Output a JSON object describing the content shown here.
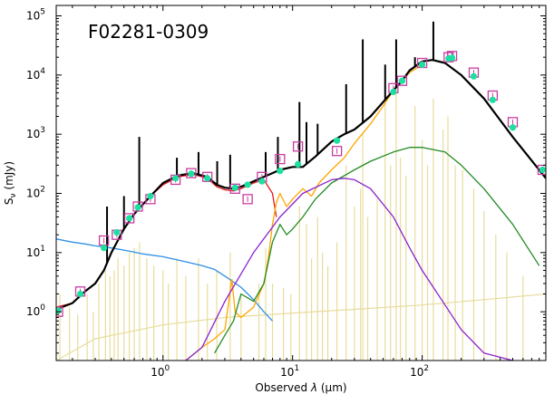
{
  "chart_data": {
    "type": "line",
    "title": "F02281-0309",
    "xlabel_prefix": "Observed ",
    "xlabel_lambda": "λ",
    "xlabel_suffix": " (μm)",
    "ylabel_main": "S",
    "ylabel_sub": "ν",
    "ylabel_unit": " (mJy)",
    "xscale": "log",
    "yscale": "log",
    "xlim": [
      0.15,
      900
    ],
    "ylim": [
      0.15,
      150000
    ],
    "x_ticks": [
      {
        "value": 1,
        "label": "10",
        "exp": "0"
      },
      {
        "value": 10,
        "label": "10",
        "exp": "1"
      },
      {
        "value": 100,
        "label": "10",
        "exp": "2"
      }
    ],
    "y_ticks": [
      {
        "value": 1,
        "label": "10",
        "exp": "0"
      },
      {
        "value": 10,
        "label": "10",
        "exp": "1"
      },
      {
        "value": 100,
        "label": "10",
        "exp": "2"
      },
      {
        "value": 1000,
        "label": "10",
        "exp": "3"
      },
      {
        "value": 10000,
        "label": "10",
        "exp": "4"
      },
      {
        "value": 100000,
        "label": "10",
        "exp": "5"
      }
    ],
    "series": [
      {
        "key": "stellar_unattenuated",
        "color": "#2f8fe6",
        "x": [
          0.15,
          0.2,
          0.25,
          0.3,
          0.4,
          0.5,
          0.7,
          1.0,
          1.5,
          2.0,
          2.5,
          3.0,
          4.0,
          5.0,
          6.0,
          7.0
        ],
        "y": [
          17,
          15,
          14,
          13,
          12,
          11,
          9.5,
          8.5,
          7,
          6,
          5.2,
          4.0,
          2.6,
          1.6,
          1.0,
          0.7
        ]
      },
      {
        "key": "stellar_attenuated",
        "color": "#e41a1c",
        "x": [
          0.15,
          0.2,
          0.25,
          0.3,
          0.35,
          0.4,
          0.5,
          0.6,
          0.8,
          1.0,
          1.3,
          1.7,
          2.2,
          2.6,
          3.0,
          3.5,
          4.0,
          5.0,
          6.0,
          7.0,
          7.5
        ],
        "y": [
          1.2,
          1.4,
          2.2,
          3.0,
          5.0,
          10,
          25,
          45,
          90,
          140,
          190,
          210,
          180,
          130,
          115,
          110,
          120,
          150,
          170,
          100,
          40
        ]
      },
      {
        "key": "agn_torus",
        "color": "#ffa500",
        "x": [
          1.5,
          2.0,
          2.5,
          3.0,
          3.4,
          3.6,
          4.0,
          5.0,
          6.0,
          6.5,
          7.0,
          7.5,
          8.0,
          9.0,
          10.0,
          12.0,
          14.0,
          16.0,
          20.0,
          25.0,
          30.0,
          40.0,
          50.0,
          60.0,
          70.0,
          80.0,
          100.0
        ],
        "y": [
          0.15,
          0.25,
          0.35,
          0.5,
          3.5,
          1.0,
          0.8,
          1.2,
          3.0,
          8,
          30,
          70,
          100,
          60,
          80,
          120,
          90,
          150,
          250,
          400,
          700,
          1500,
          3000,
          5500,
          8000,
          11000,
          15000
        ]
      },
      {
        "key": "cold_dust",
        "color": "#228b22",
        "x": [
          2.5,
          3.0,
          3.5,
          4.0,
          5.0,
          6.0,
          7.0,
          8.0,
          9.0,
          10.0,
          12.0,
          15.0,
          20.0,
          30.0,
          40.0,
          60.0,
          80.0,
          100.0,
          150.0,
          200.0,
          300.0,
          500.0,
          800.0
        ],
        "y": [
          0.2,
          0.4,
          0.7,
          2.0,
          1.5,
          3.0,
          15,
          30,
          20,
          25,
          40,
          80,
          150,
          250,
          350,
          500,
          600,
          600,
          500,
          300,
          120,
          30,
          6
        ]
      },
      {
        "key": "hot_dust",
        "color": "#8b22cc",
        "x": [
          1.5,
          2.0,
          3.0,
          5.0,
          8.0,
          12.0,
          20.0,
          25.0,
          30.0,
          40.0,
          60.0,
          80.0,
          100.0,
          150.0,
          200.0,
          300.0,
          500.0
        ],
        "y": [
          0.15,
          0.25,
          1.5,
          10,
          40,
          100,
          170,
          180,
          170,
          120,
          40,
          12,
          5,
          1.3,
          0.5,
          0.2,
          0.15
        ]
      },
      {
        "key": "total_model",
        "color": "#000000",
        "x": [
          0.15,
          0.2,
          0.25,
          0.3,
          0.35,
          0.4,
          0.5,
          0.6,
          0.8,
          1.0,
          1.3,
          1.7,
          2.2,
          2.6,
          3.0,
          3.5,
          4.0,
          5.0,
          6.0,
          7.0,
          8.0,
          10.0,
          12.0,
          15.0,
          20.0,
          25.0,
          30.0,
          40.0,
          50.0,
          60.0,
          70.0,
          80.0,
          100.0,
          120.0,
          150.0,
          200.0,
          300.0,
          500.0,
          900.0
        ],
        "y": [
          1.1,
          1.4,
          2.2,
          3.0,
          5.0,
          10,
          25,
          45,
          90,
          150,
          200,
          220,
          190,
          140,
          125,
          120,
          130,
          160,
          190,
          220,
          250,
          280,
          280,
          420,
          750,
          1000,
          1200,
          2000,
          3500,
          5500,
          8000,
          12000,
          17000,
          18000,
          16000,
          10000,
          4000,
          900,
          180
        ]
      }
    ],
    "emission_lines": [
      {
        "x": 0.37,
        "y": 60
      },
      {
        "x": 0.5,
        "y": 90
      },
      {
        "x": 0.656,
        "y": 900
      },
      {
        "x": 1.28,
        "y": 400
      },
      {
        "x": 1.88,
        "y": 500
      },
      {
        "x": 2.62,
        "y": 350
      },
      {
        "x": 3.3,
        "y": 450
      },
      {
        "x": 6.2,
        "y": 500
      },
      {
        "x": 7.7,
        "y": 900
      },
      {
        "x": 11.3,
        "y": 3500
      },
      {
        "x": 12.8,
        "y": 1600
      },
      {
        "x": 15.6,
        "y": 1500
      },
      {
        "x": 25.9,
        "y": 7000
      },
      {
        "x": 34.8,
        "y": 40000
      },
      {
        "x": 51.8,
        "y": 15000
      },
      {
        "x": 63.0,
        "y": 40000
      },
      {
        "x": 88.0,
        "y": 20000
      },
      {
        "x": 122.0,
        "y": 80000
      }
    ],
    "template_lines": [
      {
        "x": 0.16,
        "y": 2
      },
      {
        "x": 0.19,
        "y": 1.2
      },
      {
        "x": 0.22,
        "y": 0.9
      },
      {
        "x": 0.26,
        "y": 2
      },
      {
        "x": 0.29,
        "y": 1
      },
      {
        "x": 0.32,
        "y": 3
      },
      {
        "x": 0.36,
        "y": 5
      },
      {
        "x": 0.39,
        "y": 4
      },
      {
        "x": 0.42,
        "y": 5
      },
      {
        "x": 0.45,
        "y": 8
      },
      {
        "x": 0.5,
        "y": 6
      },
      {
        "x": 0.55,
        "y": 10
      },
      {
        "x": 0.6,
        "y": 12
      },
      {
        "x": 0.66,
        "y": 15
      },
      {
        "x": 0.75,
        "y": 8
      },
      {
        "x": 0.85,
        "y": 6
      },
      {
        "x": 1.0,
        "y": 5
      },
      {
        "x": 1.1,
        "y": 3
      },
      {
        "x": 1.28,
        "y": 8
      },
      {
        "x": 1.5,
        "y": 4
      },
      {
        "x": 1.88,
        "y": 8
      },
      {
        "x": 2.2,
        "y": 3
      },
      {
        "x": 2.6,
        "y": 5
      },
      {
        "x": 3.3,
        "y": 10
      },
      {
        "x": 4.0,
        "y": 2
      },
      {
        "x": 5.5,
        "y": 3
      },
      {
        "x": 6.2,
        "y": 12
      },
      {
        "x": 7.0,
        "y": 3
      },
      {
        "x": 8.5,
        "y": 2.5
      },
      {
        "x": 9.7,
        "y": 2
      },
      {
        "x": 11.3,
        "y": 60
      },
      {
        "x": 12.8,
        "y": 30
      },
      {
        "x": 14.0,
        "y": 8
      },
      {
        "x": 15.6,
        "y": 40
      },
      {
        "x": 17.0,
        "y": 10
      },
      {
        "x": 18.7,
        "y": 6
      },
      {
        "x": 22.0,
        "y": 15
      },
      {
        "x": 25.9,
        "y": 300
      },
      {
        "x": 30.0,
        "y": 60
      },
      {
        "x": 33.5,
        "y": 120
      },
      {
        "x": 34.8,
        "y": 1000
      },
      {
        "x": 38.0,
        "y": 40
      },
      {
        "x": 45.0,
        "y": 80
      },
      {
        "x": 51.8,
        "y": 3500
      },
      {
        "x": 57.0,
        "y": 300
      },
      {
        "x": 63.0,
        "y": 7000
      },
      {
        "x": 68.0,
        "y": 400
      },
      {
        "x": 75.0,
        "y": 200
      },
      {
        "x": 88.0,
        "y": 3000
      },
      {
        "x": 100.0,
        "y": 800
      },
      {
        "x": 110.0,
        "y": 300
      },
      {
        "x": 122.0,
        "y": 4000
      },
      {
        "x": 145.0,
        "y": 1200
      },
      {
        "x": 158.0,
        "y": 2000
      },
      {
        "x": 180.0,
        "y": 300
      },
      {
        "x": 205.0,
        "y": 250
      },
      {
        "x": 250.0,
        "y": 120
      },
      {
        "x": 300.0,
        "y": 50
      },
      {
        "x": 370.0,
        "y": 20
      },
      {
        "x": 450.0,
        "y": 10
      },
      {
        "x": 600.0,
        "y": 4
      }
    ],
    "template_continuum": {
      "x": [
        0.15,
        0.3,
        1,
        3,
        10,
        30,
        100,
        300,
        900
      ],
      "y": [
        0.15,
        0.35,
        0.6,
        0.8,
        0.95,
        1.1,
        1.3,
        1.6,
        2.0
      ],
      "color": "#e8dc9c"
    },
    "observed_points": {
      "color": "#c83ca0",
      "x": [
        0.155,
        0.23,
        0.35,
        0.44,
        0.55,
        0.64,
        0.8,
        1.25,
        1.65,
        2.2,
        3.6,
        4.5,
        5.8,
        8.0,
        11.0,
        22.0,
        60.0,
        70.0,
        100.0,
        160.0,
        170.0,
        250.0,
        350.0,
        500.0,
        850.0
      ],
      "y": [
        1.0,
        2.2,
        16,
        20,
        38,
        60,
        80,
        170,
        220,
        190,
        120,
        80,
        190,
        380,
        620,
        520,
        6000,
        8000,
        16000,
        20000,
        21000,
        11000,
        4500,
        1600,
        250
      ]
    },
    "model_points": {
      "color": "#1de0a0",
      "x": [
        0.155,
        0.23,
        0.35,
        0.44,
        0.55,
        0.64,
        0.8,
        1.25,
        1.65,
        2.2,
        3.6,
        4.5,
        5.8,
        8.0,
        11.0,
        22.0,
        60.0,
        70.0,
        100.0,
        160.0,
        170.0,
        250.0,
        350.0,
        500.0,
        850.0
      ],
      "y": [
        1.05,
        2.0,
        12,
        22,
        38,
        58,
        90,
        180,
        215,
        180,
        125,
        140,
        160,
        240,
        310,
        780,
        5200,
        8000,
        15000,
        19000,
        19500,
        9500,
        3800,
        1300,
        250
      ]
    }
  }
}
